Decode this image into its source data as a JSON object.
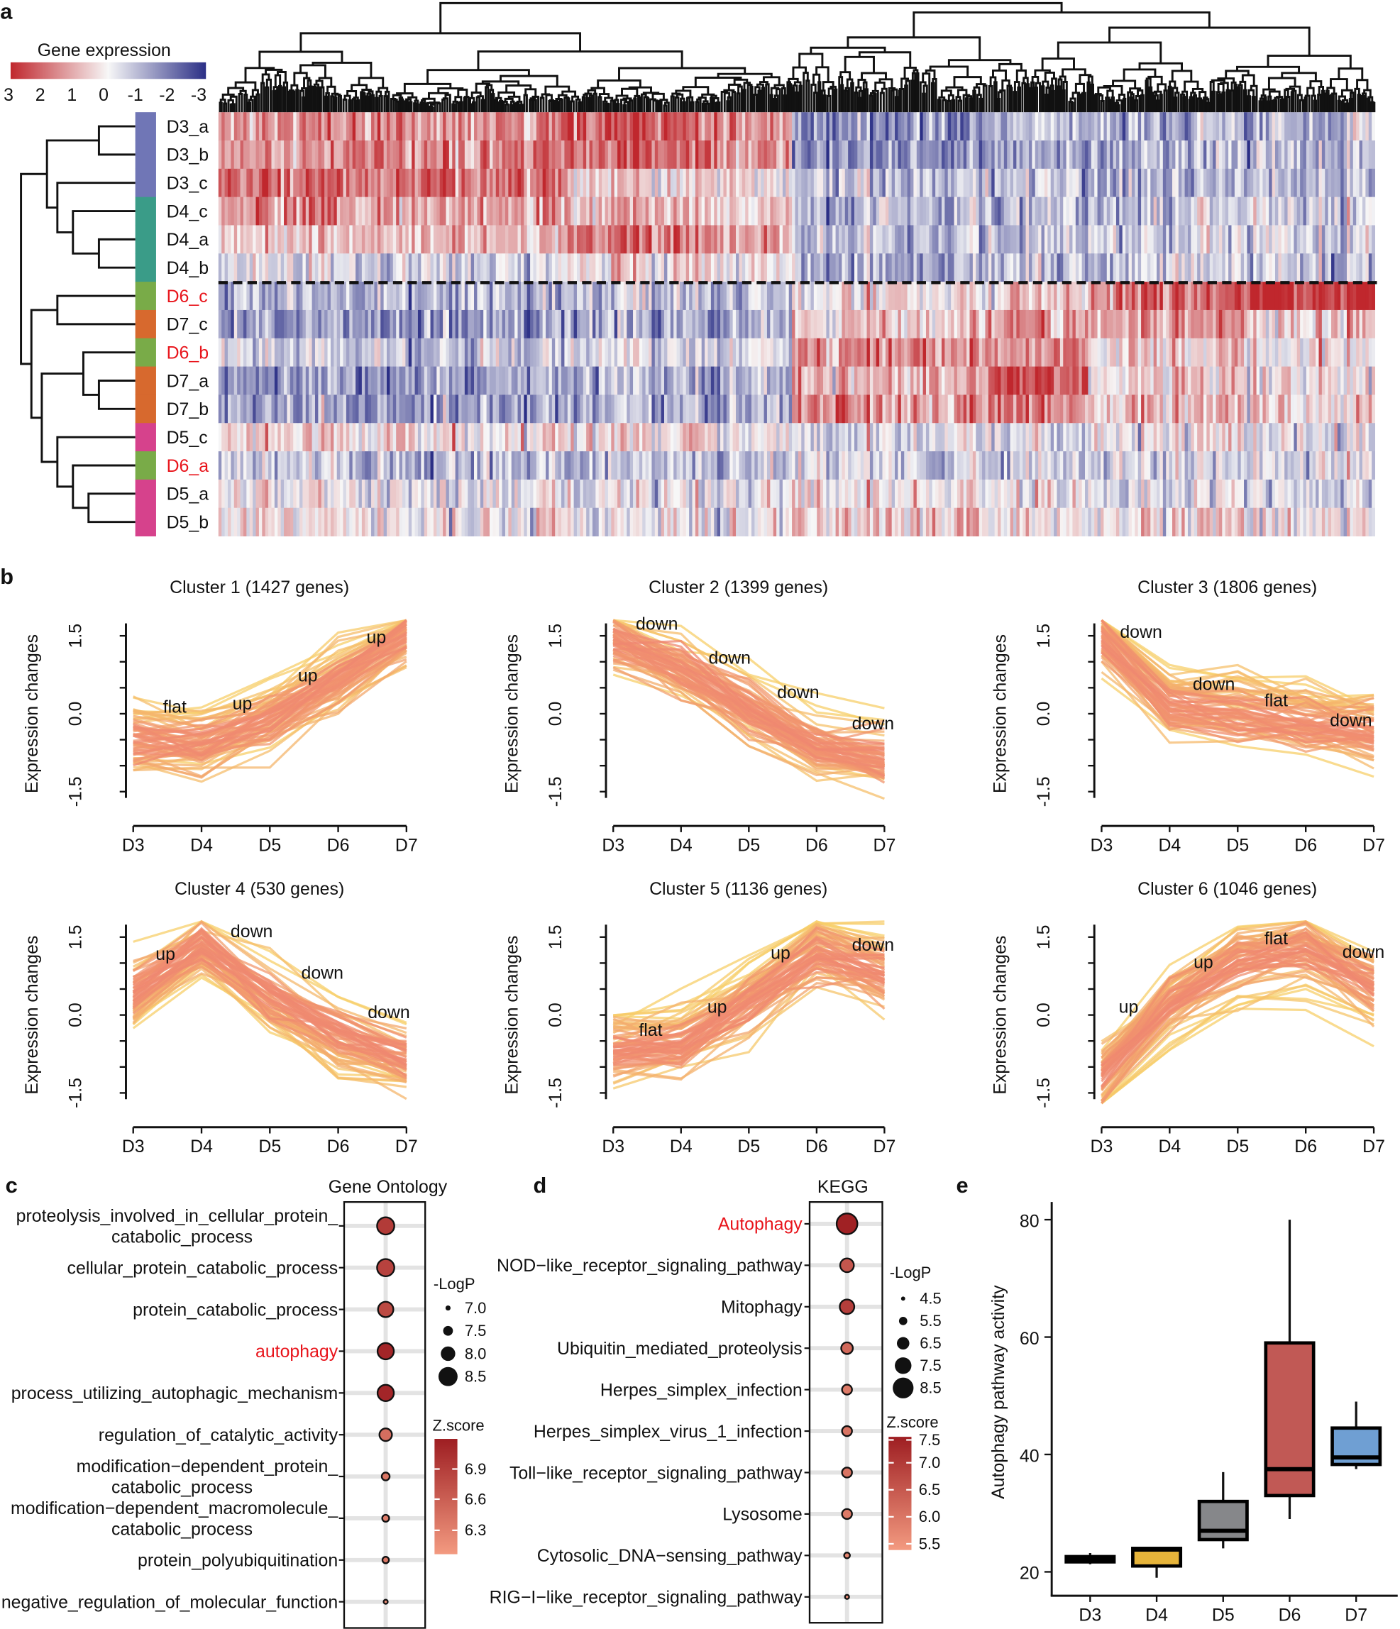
{
  "panel_labels": {
    "a": "a",
    "b": "b",
    "c": "c",
    "d": "d",
    "e": "e"
  },
  "chart_data": [
    {
      "type": "heatmap",
      "legend_title": "Gene expression",
      "legend_ticks": [
        "3",
        "2",
        "1",
        "0",
        "-1",
        "-2",
        "-3"
      ],
      "range": [
        3,
        -3
      ],
      "colors": {
        "high": "#c0272d",
        "mid": "#f7f7f7",
        "low": "#2b2f86"
      },
      "group_colors": {
        "D3": "#7076b6",
        "D4": "#3a9c88",
        "D5": "#d6428c",
        "D6": "#79ab48",
        "D7": "#d7692e"
      },
      "highlight_color": "#e8141b",
      "rows": [
        {
          "label": "D3_a",
          "group": "D3",
          "highlight": false
        },
        {
          "label": "D3_b",
          "group": "D3",
          "highlight": false
        },
        {
          "label": "D3_c",
          "group": "D3",
          "highlight": false
        },
        {
          "label": "D4_c",
          "group": "D4",
          "highlight": false
        },
        {
          "label": "D4_a",
          "group": "D4",
          "highlight": false
        },
        {
          "label": "D4_b",
          "group": "D4",
          "highlight": false
        },
        {
          "label": "D6_c",
          "group": "D6",
          "highlight": true
        },
        {
          "label": "D7_c",
          "group": "D7",
          "highlight": false
        },
        {
          "label": "D6_b",
          "group": "D6",
          "highlight": true
        },
        {
          "label": "D7_a",
          "group": "D7",
          "highlight": false
        },
        {
          "label": "D7_b",
          "group": "D7",
          "highlight": false
        },
        {
          "label": "D5_c",
          "group": "D5",
          "highlight": false
        },
        {
          "label": "D6_a",
          "group": "D6",
          "highlight": true
        },
        {
          "label": "D5_a",
          "group": "D5",
          "highlight": false
        },
        {
          "label": "D5_b",
          "group": "D5",
          "highlight": false
        }
      ],
      "approx_block_means": [
        [
          1.2,
          1.5,
          2.0,
          1.5,
          -1.5,
          -1.0,
          -1.0,
          -0.8
        ],
        [
          1.2,
          1.5,
          2.0,
          1.2,
          -1.5,
          -1.2,
          -1.0,
          -1.0
        ],
        [
          2.0,
          1.8,
          0.3,
          0.2,
          -0.8,
          -0.8,
          -1.0,
          -0.8
        ],
        [
          1.5,
          1.2,
          0.8,
          0.5,
          -0.8,
          -0.8,
          -0.8,
          -0.5
        ],
        [
          0.5,
          0.8,
          1.5,
          1.2,
          -0.8,
          -0.8,
          -0.6,
          -0.5
        ],
        [
          -0.3,
          -0.5,
          0.3,
          0.3,
          -1.0,
          -0.8,
          -0.6,
          -0.5
        ],
        [
          -1.2,
          -1.0,
          -0.8,
          -0.5,
          0.3,
          0.5,
          2.0,
          3.0
        ],
        [
          -1.5,
          -1.5,
          -1.2,
          -1.0,
          0.5,
          1.5,
          1.2,
          0.5
        ],
        [
          -0.5,
          -0.8,
          -0.5,
          -0.3,
          1.5,
          1.5,
          0.5,
          0.2
        ],
        [
          -1.5,
          -1.5,
          -1.2,
          -1.0,
          1.0,
          2.2,
          0.5,
          0.3
        ],
        [
          -1.3,
          -1.5,
          -1.2,
          -1.0,
          1.5,
          1.8,
          0.8,
          0.5
        ],
        [
          0.3,
          0.3,
          0.2,
          0.0,
          -0.3,
          -0.2,
          0.0,
          -0.3
        ],
        [
          -0.8,
          -1.0,
          -0.8,
          -0.8,
          -0.5,
          -0.5,
          -0.5,
          -0.3
        ],
        [
          0.0,
          -0.2,
          -0.3,
          -0.2,
          0.3,
          0.0,
          -0.3,
          -0.5
        ],
        [
          0.0,
          0.0,
          -0.3,
          0.0,
          0.8,
          0.3,
          0.3,
          0.0
        ]
      ]
    },
    {
      "type": "line",
      "title": "Cluster 1 (1427 genes)",
      "ylabel": "Expression changes",
      "x": [
        "D3",
        "D4",
        "D5",
        "D6",
        "D7"
      ],
      "yticks": [
        "1.5",
        "0.0",
        "-1.5"
      ],
      "mean_profile": [
        -0.5,
        -0.6,
        -0.1,
        0.6,
        1.5
      ],
      "annotations": [
        "flat",
        "up",
        "up",
        "up"
      ]
    },
    {
      "type": "line",
      "title": "Cluster 2 (1399 genes)",
      "ylabel": "Expression changes",
      "x": [
        "D3",
        "D4",
        "D5",
        "D6",
        "D7"
      ],
      "yticks": [
        "1.5",
        "0.0",
        "-1.5"
      ],
      "mean_profile": [
        1.4,
        0.9,
        0.1,
        -0.6,
        -0.9
      ],
      "annotations": [
        "down",
        "down",
        "down",
        "down"
      ]
    },
    {
      "type": "line",
      "title": "Cluster 3 (1806 genes)",
      "ylabel": "Expression changes",
      "x": [
        "D3",
        "D4",
        "D5",
        "D6",
        "D7"
      ],
      "yticks": [
        "1.5",
        "0.0",
        "-1.5"
      ],
      "mean_profile": [
        1.5,
        0.1,
        0.0,
        -0.2,
        -0.4
      ],
      "annotations": [
        "down",
        "down",
        "flat",
        "down"
      ]
    },
    {
      "type": "line",
      "title": "Cluster 4 (530 genes)",
      "ylabel": "Expression changes",
      "x": [
        "D3",
        "D4",
        "D5",
        "D6",
        "D7"
      ],
      "yticks": [
        "1.5",
        "0.0",
        "-1.5"
      ],
      "mean_profile": [
        0.4,
        1.4,
        0.4,
        -0.4,
        -0.8
      ],
      "annotations": [
        "up",
        "down",
        "down",
        "down"
      ]
    },
    {
      "type": "line",
      "title": "Cluster 5 (1136 genes)",
      "ylabel": "Expression changes",
      "x": [
        "D3",
        "D4",
        "D5",
        "D6",
        "D7"
      ],
      "yticks": [
        "1.5",
        "0.0",
        "-1.5"
      ],
      "mean_profile": [
        -0.7,
        -0.6,
        0.2,
        1.2,
        0.8
      ],
      "annotations": [
        "flat",
        "up",
        "up",
        "down"
      ]
    },
    {
      "type": "line",
      "title": "Cluster 6 (1046 genes)",
      "ylabel": "Expression changes",
      "x": [
        "D3",
        "D4",
        "D5",
        "D6",
        "D7"
      ],
      "yticks": [
        "1.5",
        "0.0",
        "-1.5"
      ],
      "mean_profile": [
        -1.2,
        0.2,
        1.0,
        1.3,
        0.5
      ],
      "annotations": [
        "up",
        "up",
        "flat",
        "down"
      ]
    },
    {
      "type": "scatter",
      "title": "Gene Ontology",
      "size_legend_title": "-LogP",
      "size_ticks": [
        "7.0",
        "7.5",
        "8.0",
        "8.5"
      ],
      "color_legend_title": "Z.score",
      "color_ticks": [
        "6.9",
        "6.6",
        "6.3"
      ],
      "color_range": [
        6.2,
        7.05
      ],
      "terms": [
        {
          "label": [
            "proteolysis_involved_in_cellular_protein_",
            "catabolic_process"
          ],
          "neglogp": 8.3,
          "z": 6.85,
          "highlight": false
        },
        {
          "label": [
            "cellular_protein_catabolic_process"
          ],
          "neglogp": 8.3,
          "z": 6.8,
          "highlight": false
        },
        {
          "label": [
            "protein_catabolic_process"
          ],
          "neglogp": 8.1,
          "z": 6.75,
          "highlight": false
        },
        {
          "label": [
            "autophagy"
          ],
          "neglogp": 8.2,
          "z": 7.0,
          "highlight": true
        },
        {
          "label": [
            "process_utilizing_autophagic_mechanism"
          ],
          "neglogp": 8.2,
          "z": 7.0,
          "highlight": false
        },
        {
          "label": [
            "regulation_of_catalytic_activity"
          ],
          "neglogp": 7.8,
          "z": 6.5,
          "highlight": false
        },
        {
          "label": [
            "modification−dependent_protein_",
            "catabolic_process"
          ],
          "neglogp": 7.3,
          "z": 6.45,
          "highlight": false
        },
        {
          "label": [
            "modification−dependent_macromolecule_",
            "catabolic_process"
          ],
          "neglogp": 7.2,
          "z": 6.4,
          "highlight": false
        },
        {
          "label": [
            "protein_polyubiquitination"
          ],
          "neglogp": 7.15,
          "z": 6.45,
          "highlight": false
        },
        {
          "label": [
            "negative_regulation_of_molecular_function"
          ],
          "neglogp": 6.9,
          "z": 6.3,
          "highlight": false
        }
      ]
    },
    {
      "type": "scatter",
      "title": "KEGG",
      "size_legend_title": "-LogP",
      "size_ticks": [
        "4.5",
        "5.5",
        "6.5",
        "7.5",
        "8.5"
      ],
      "color_legend_title": "Z.score",
      "color_ticks": [
        "7.5",
        "7.0",
        "6.5",
        "6.0",
        "5.5"
      ],
      "color_range": [
        5.45,
        7.55
      ],
      "terms": [
        {
          "label": [
            "Autophagy"
          ],
          "neglogp": 8.5,
          "z": 7.5,
          "highlight": true
        },
        {
          "label": [
            "NOD−like_receptor_signaling_pathway"
          ],
          "neglogp": 6.8,
          "z": 6.6,
          "highlight": false
        },
        {
          "label": [
            "Mitophagy"
          ],
          "neglogp": 7.0,
          "z": 7.0,
          "highlight": false
        },
        {
          "label": [
            "Ubiquitin_mediated_proteolysis"
          ],
          "neglogp": 6.3,
          "z": 6.3,
          "highlight": false
        },
        {
          "label": [
            "Herpes_simplex_infection"
          ],
          "neglogp": 5.9,
          "z": 6.0,
          "highlight": false
        },
        {
          "label": [
            "Herpes_simplex_virus_1_infection"
          ],
          "neglogp": 5.9,
          "z": 6.1,
          "highlight": false
        },
        {
          "label": [
            "Toll−like_receptor_signaling_pathway"
          ],
          "neglogp": 5.9,
          "z": 6.1,
          "highlight": false
        },
        {
          "label": [
            "Lysosome"
          ],
          "neglogp": 5.9,
          "z": 6.0,
          "highlight": false
        },
        {
          "label": [
            "Cytosolic_DNA−sensing_pathway"
          ],
          "neglogp": 4.9,
          "z": 5.8,
          "highlight": false
        },
        {
          "label": [
            "RIG−I−like_receptor_signaling_pathway"
          ],
          "neglogp": 4.5,
          "z": 5.7,
          "highlight": false
        }
      ]
    },
    {
      "type": "box",
      "ylabel": "Autophagy pathway activity",
      "categories": [
        "D3",
        "D4",
        "D5",
        "D6",
        "D7"
      ],
      "yticks": [
        "80",
        "60",
        "40",
        "20"
      ],
      "ylim": [
        16,
        86
      ],
      "boxes": [
        {
          "min": 21.3,
          "q1": 21.7,
          "median": 22.2,
          "q3": 22.6,
          "max": 23.2,
          "color": "#111111"
        },
        {
          "min": 19.0,
          "q1": 21.0,
          "median": 23.8,
          "q3": 24.0,
          "max": 24.0,
          "color": "#e6b43a"
        },
        {
          "min": 24.0,
          "q1": 25.5,
          "median": 27.0,
          "q3": 32.0,
          "max": 37.0,
          "color": "#86878a"
        },
        {
          "min": 29.0,
          "q1": 33.0,
          "median": 37.5,
          "q3": 59.0,
          "max": 80.0,
          "color": "#c15955"
        },
        {
          "min": 37.5,
          "q1": 38.3,
          "median": 39.5,
          "q3": 44.5,
          "max": 49.0,
          "color": "#6f9fd3"
        }
      ]
    }
  ]
}
